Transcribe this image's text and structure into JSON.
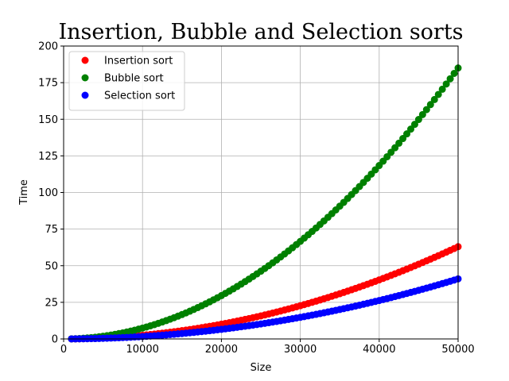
{
  "chart_data": {
    "type": "scatter",
    "title": "Insertion, Bubble and Selection sorts",
    "xlabel": "Size",
    "ylabel": "Time",
    "xlim": [
      0,
      50000
    ],
    "ylim": [
      0,
      200
    ],
    "xticks": [
      0,
      10000,
      20000,
      30000,
      40000,
      50000
    ],
    "yticks": [
      0,
      25,
      50,
      75,
      100,
      125,
      150,
      175,
      200
    ],
    "grid": true,
    "legend_position": "upper-left",
    "marker": "circle",
    "x_range": {
      "start": 1000,
      "end": 50000,
      "step": 500
    },
    "series": [
      {
        "name": "Insertion sort",
        "color": "#ff0000",
        "model": "quadratic",
        "y_at_x_end": 63
      },
      {
        "name": "Bubble sort",
        "color": "#008000",
        "model": "quadratic",
        "y_at_x_end": 185
      },
      {
        "name": "Selection sort",
        "color": "#0000ff",
        "model": "quadratic",
        "y_at_x_end": 41
      }
    ]
  }
}
